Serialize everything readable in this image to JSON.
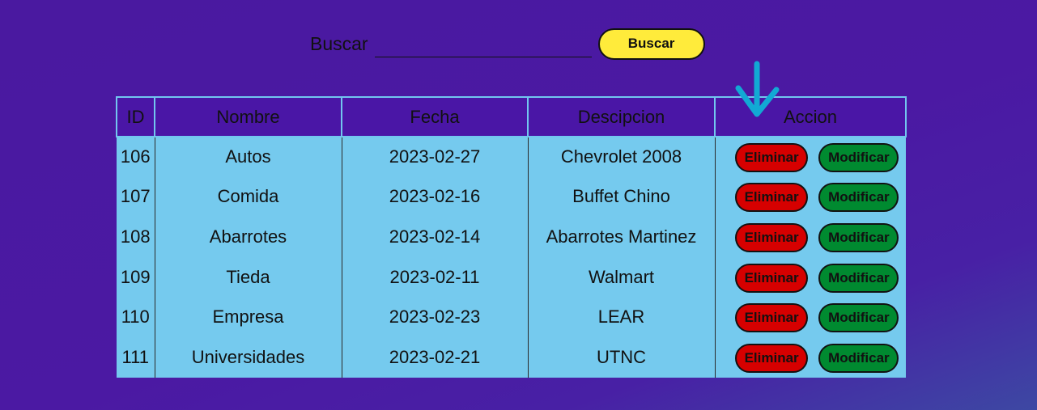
{
  "search": {
    "label": "Buscar",
    "value": "",
    "placeholder": "",
    "button_label": "Buscar"
  },
  "table": {
    "headers": [
      "ID",
      "Nombre",
      "Fecha",
      "Descipcion",
      "Accion"
    ],
    "rows": [
      {
        "id": "106",
        "nombre": "Autos",
        "fecha": "2023-02-27",
        "descripcion": "Chevrolet 2008"
      },
      {
        "id": "107",
        "nombre": "Comida",
        "fecha": "2023-02-16",
        "descripcion": "Buffet Chino"
      },
      {
        "id": "108",
        "nombre": "Abarrotes",
        "fecha": "2023-02-14",
        "descripcion": "Abarrotes Martinez"
      },
      {
        "id": "109",
        "nombre": "Tieda",
        "fecha": "2023-02-11",
        "descripcion": "Walmart"
      },
      {
        "id": "110",
        "nombre": "Empresa",
        "fecha": "2023-02-23",
        "descripcion": "LEAR"
      },
      {
        "id": "111",
        "nombre": "Universidades",
        "fecha": "2023-02-21",
        "descripcion": "UTNC"
      }
    ],
    "delete_label": "Eliminar",
    "edit_label": "Modificar"
  },
  "annotation": {
    "icon": "arrow-down-icon",
    "color": "#12a9d4"
  },
  "colors": {
    "header_bg": "#4a16a6",
    "row_bg": "#75caee",
    "search_button": "#ffeb3b",
    "delete_button": "#d60000",
    "edit_button": "#008a30"
  }
}
